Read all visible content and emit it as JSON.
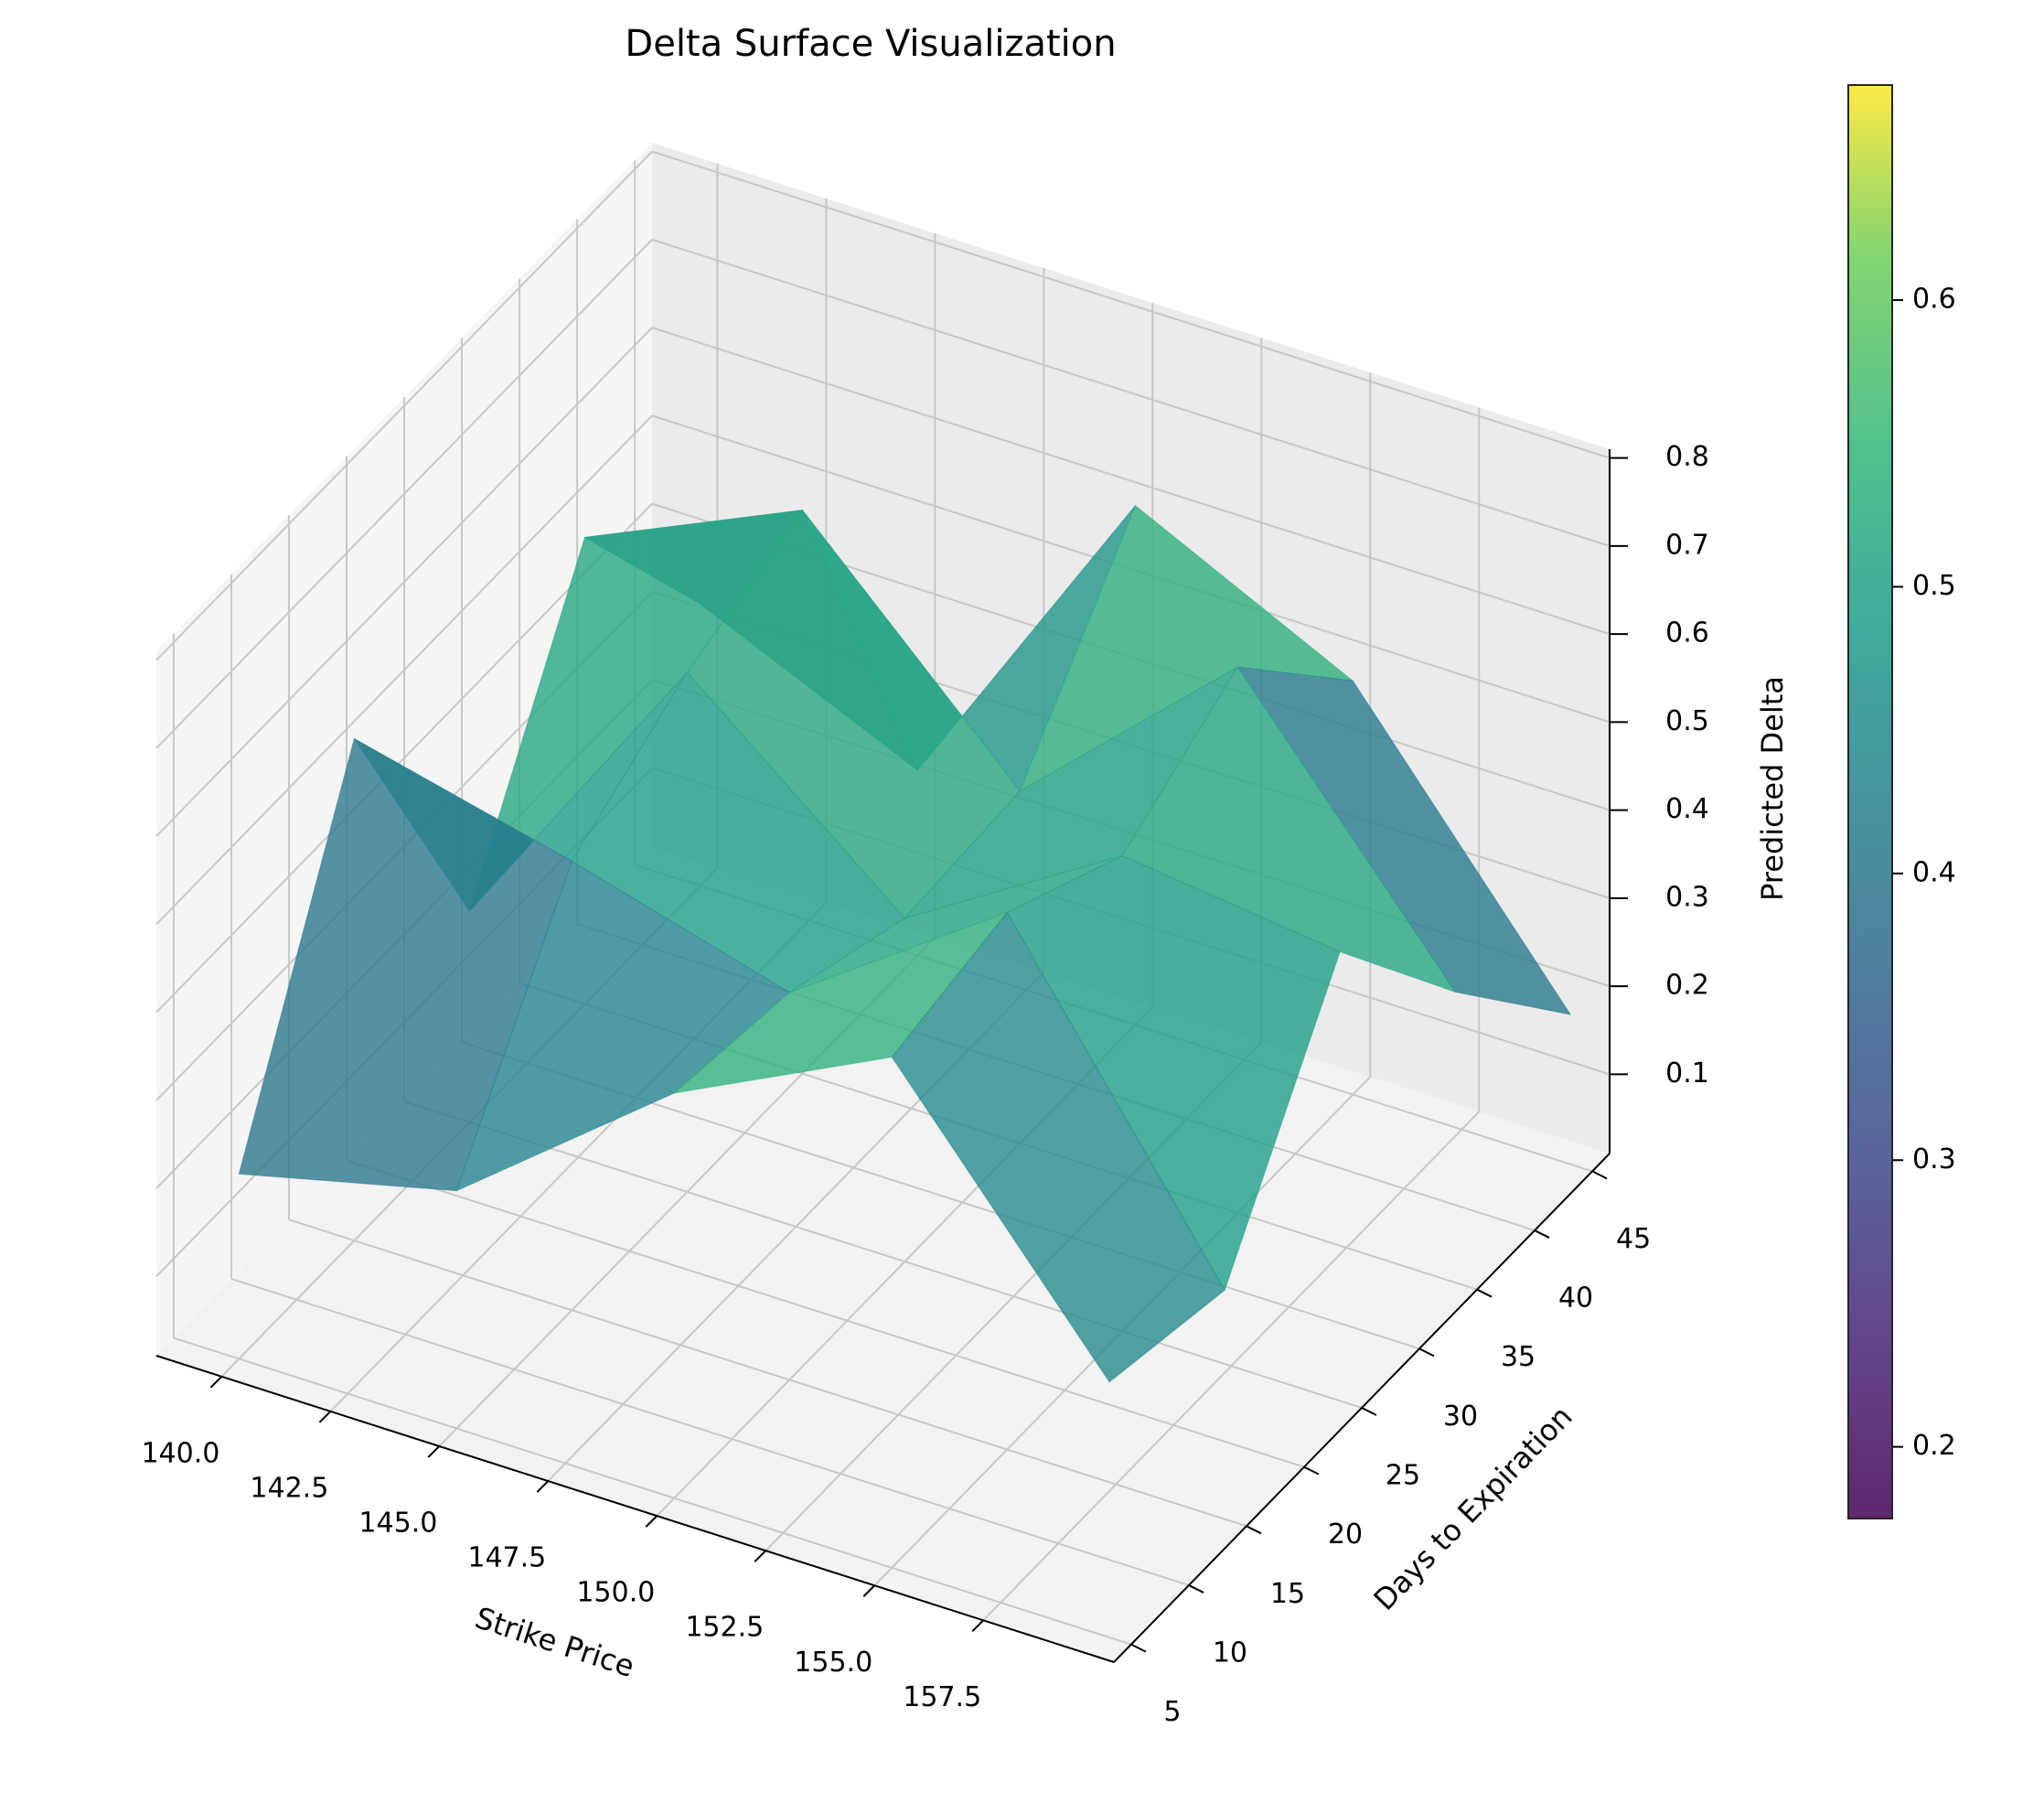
{
  "chart_data": {
    "type": "surface3d",
    "title": "Delta Surface Visualization",
    "x_label": "Strike Price",
    "y_label": "Days to Expiration",
    "z_label": "Predicted Delta",
    "x": [
      140,
      145,
      150,
      155,
      160
    ],
    "y": [
      5,
      15,
      25,
      35,
      45
    ],
    "z": [
      [
        0.22,
        0.28,
        0.47,
        0.59,
        0.3
      ],
      [
        0.58,
        0.52,
        0.45,
        0.62,
        0.27
      ],
      [
        0.25,
        0.6,
        0.4,
        0.55,
        0.52
      ],
      [
        0.54,
        0.65,
        0.41,
        0.63,
        0.34
      ],
      [
        0.33,
        0.22,
        0.6,
        0.48,
        0.18
      ]
    ],
    "xlim": [
      138.5,
      160.5
    ],
    "xticks": [
      {
        "value": 140,
        "label": "140.0"
      },
      {
        "value": 142.5,
        "label": "142.5"
      },
      {
        "value": 145,
        "label": "145.0"
      },
      {
        "value": 147.5,
        "label": "147.5"
      },
      {
        "value": 150,
        "label": "150.0"
      },
      {
        "value": 152.5,
        "label": "152.5"
      },
      {
        "value": 155,
        "label": "155.0"
      },
      {
        "value": 157.5,
        "label": "157.5"
      }
    ],
    "ylim": [
      3.5,
      46.5
    ],
    "yticks": [
      5,
      10,
      15,
      20,
      25,
      30,
      35,
      40,
      45
    ],
    "zlim": [
      0.01,
      0.81
    ],
    "zticks": [
      0.1,
      0.2,
      0.3,
      0.4,
      0.5,
      0.6,
      0.7,
      0.8
    ],
    "colormap": "viridis",
    "clim": [
      0.175,
      0.675
    ],
    "cticks": [
      0.2,
      0.3,
      0.4,
      0.5,
      0.6
    ],
    "grid": true
  }
}
